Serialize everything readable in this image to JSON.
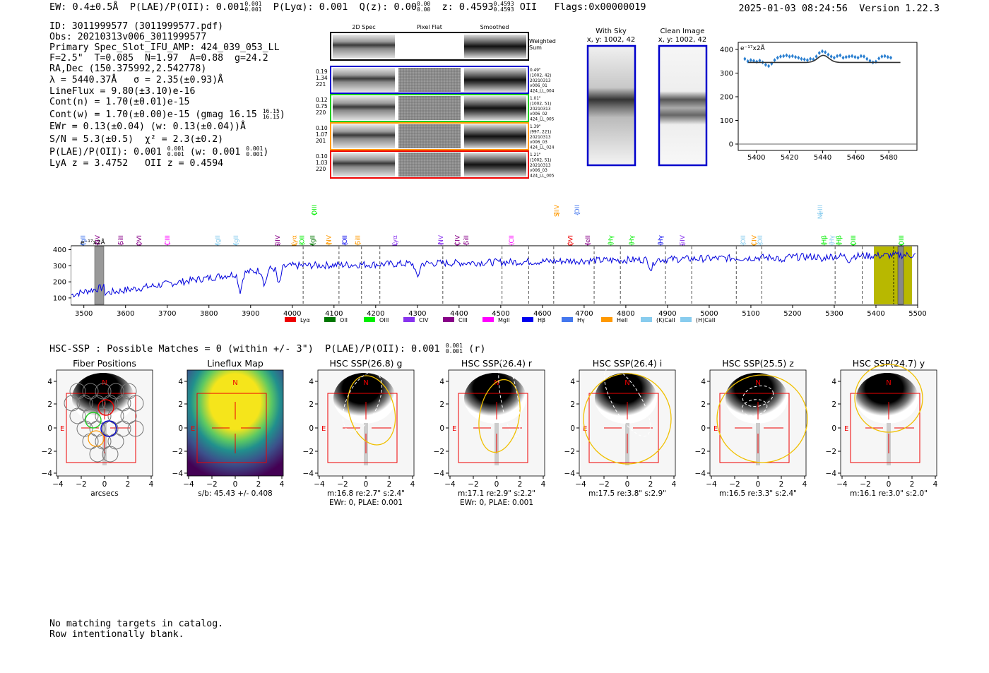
{
  "header": {
    "ew": "EW: 0.4±0.5Å",
    "plae_label": "P(LAE)/P(OII): 0.001",
    "plae_hi": "0.001",
    "plae_lo": "0.001",
    "plya": "P(Lyα): 0.001",
    "qz_label": "Q(z): 0.00",
    "qz_hi": "0.00",
    "qz_lo": "0.00",
    "z_label": "z: 0.4593",
    "z_hi": "0.4593",
    "z_lo": "0.4593",
    "z_line": "OII",
    "flags": "Flags:0x00000019",
    "datetime": "2025-01-03 08:24:56",
    "version": "Version 1.22.3"
  },
  "info": {
    "id": "ID: 3011999577 (3011999577.pdf)",
    "obs": "Obs: 20210313v006_3011999577",
    "primary": "Primary Spec_Slot_IFU_AMP: 424_039_053_LL",
    "fiber": "F=2.5\"  T=0.085  N=1.97  A=0.88  g=24.2",
    "radec": "RA,Dec (150.375992,2.542778)",
    "lambda": "λ = 5440.37Å   σ = 2.35(±0.93)Å",
    "lineflux": "LineFlux = 9.80(±3.10)e-16",
    "contn": "Cont(n) = 1.70(±0.01)e-15",
    "contw": "Cont(w) = 1.70(±0.00)e-15 (gmag 16.15",
    "contw_hi": "16.15",
    "contw_lo": "16.15",
    "contw_end": ")",
    "ewr": "EWr = 0.13(±0.04) (w: 0.13(±0.04))Å",
    "sn": "S/N = 5.3(±0.5)  χ² = 2.3(±0.2)",
    "plae": "P(LAE)/P(OII): 0.001",
    "plae_hi": "0.001",
    "plae_lo": "0.001",
    "plae_w": "(w: 0.001",
    "plae_w_hi": "0.001",
    "plae_w_lo": "0.001",
    "plae_end": ")",
    "lya": "LyA z = 3.4752   OII z = 0.4594"
  },
  "cutouts": {
    "headers": [
      "2D Spec",
      "Pixel Flat",
      "Smoothed"
    ],
    "weighted_sum": [
      "Weighted",
      "Sum"
    ],
    "rows": [
      {
        "stats": [
          "0.19",
          "1.34",
          "221"
        ],
        "meta": [
          "0.49\"",
          "(1002, 42)",
          "20210313",
          "v006_01",
          "424_LL_004"
        ],
        "color": "#0000cc"
      },
      {
        "stats": [
          "0.12",
          "0.75",
          "220"
        ],
        "meta": [
          "1.01\"",
          "(1002, 51)",
          "20210313",
          "v006_02",
          "424_LL_005"
        ],
        "color": "#22cc22"
      },
      {
        "stats": [
          "0.10",
          "1.07",
          "201"
        ],
        "meta": [
          "1.39\"",
          "(997, 221)",
          "20210313",
          "v006_03",
          "424_LL_024"
        ],
        "color": "#ff9900"
      },
      {
        "stats": [
          "0.10",
          "1.03",
          "220"
        ],
        "meta": [
          "1.21\"",
          "(1002, 51)",
          "20210313",
          "v006_03",
          "424_LL_005"
        ],
        "color": "#ee0000"
      }
    ]
  },
  "sky": {
    "with_sky_title": "With Sky",
    "with_sky_coords": "x, y: 1002, 42",
    "clean_title": "Clean Image",
    "clean_coords": "x, y: 1002, 42"
  },
  "zoom_spectrum": {
    "unit": "e⁻¹⁷x2Å",
    "yticks": [
      "400",
      "300",
      "200",
      "100",
      "0"
    ],
    "xticks": [
      "5400",
      "5420",
      "5440",
      "5460",
      "5480"
    ]
  },
  "full_spectrum": {
    "unit": "e⁻¹⁷x2Å",
    "yticks": [
      "400",
      "300",
      "200",
      "100"
    ],
    "xticks": [
      "3500",
      "3600",
      "3700",
      "3800",
      "3900",
      "4000",
      "4100",
      "4200",
      "4300",
      "4400",
      "4500",
      "4600",
      "4700",
      "4800",
      "4900",
      "5000",
      "5100",
      "5200",
      "5300",
      "5400",
      "5500"
    ],
    "legend": [
      {
        "label": "Lyα",
        "color": "#ee0000"
      },
      {
        "label": "OII",
        "color": "#007700"
      },
      {
        "label": "OIII",
        "color": "#00ee00"
      },
      {
        "label": "CIV",
        "color": "#8833ee"
      },
      {
        "label": "CIII",
        "color": "#880088"
      },
      {
        "label": "MgII",
        "color": "#ff00ff"
      },
      {
        "label": "Hβ",
        "color": "#0000ee"
      },
      {
        "label": "Hγ",
        "color": "#4477ee"
      },
      {
        "label": "HeII",
        "color": "#ff9900"
      },
      {
        "label": "(K)CaII",
        "color": "#88ccee"
      },
      {
        "label": "(H)CaII",
        "color": "#88ccee"
      }
    ],
    "lines": [
      {
        "label": "MgII",
        "color": "#4477ee",
        "row": 0
      },
      {
        "label": "NV",
        "color": "#880088",
        "row": 0
      },
      {
        "label": "SiII",
        "color": "#880088",
        "row": 0
      },
      {
        "label": "OVI",
        "color": "#880088",
        "row": 0
      },
      {
        "label": "CIII",
        "color": "#ff00ff",
        "row": 0
      },
      {
        "label": "MgII",
        "color": "#88ccee",
        "row": 0
      },
      {
        "label": "MgII",
        "color": "#88ccee",
        "row": 0
      },
      {
        "label": "SiIV",
        "color": "#880088",
        "row": 0
      },
      {
        "label": "Lyα",
        "color": "#ff9900",
        "row": 0
      },
      {
        "label": "OII",
        "color": "#00ee00",
        "row": 0
      },
      {
        "label": "MgII",
        "color": "#007700",
        "row": 0
      },
      {
        "label": "OIII",
        "color": "#00ee00",
        "row": 1
      },
      {
        "label": "NV",
        "color": "#ff9900",
        "row": 0
      },
      {
        "label": "OII",
        "color": "#0000ee",
        "row": 0
      },
      {
        "label": "SiII",
        "color": "#ff9900",
        "row": 0
      },
      {
        "label": "Lyα",
        "color": "#8833ee",
        "row": 0
      },
      {
        "label": "NV",
        "color": "#8833ee",
        "row": 0
      },
      {
        "label": "CIV",
        "color": "#880088",
        "row": 0
      },
      {
        "label": "SiII",
        "color": "#880088",
        "row": 0
      },
      {
        "label": "CII",
        "color": "#ff00ff",
        "row": 0
      },
      {
        "label": "SiIV",
        "color": "#ff9900",
        "row": 1
      },
      {
        "label": "OVI",
        "color": "#ee0000",
        "row": 0
      },
      {
        "label": "OII",
        "color": "#4477ee",
        "row": 1
      },
      {
        "label": "HeII",
        "color": "#880088",
        "row": 0
      },
      {
        "label": "Hγ",
        "color": "#00ee00",
        "row": 0
      },
      {
        "label": "Hγ",
        "color": "#00ee00",
        "row": 0
      },
      {
        "label": "Hγ",
        "color": "#0000ee",
        "row": 0
      },
      {
        "label": "SiIV",
        "color": "#8833ee",
        "row": 0
      },
      {
        "label": "OII",
        "color": "#88ccee",
        "row": 0
      },
      {
        "label": "CIV",
        "color": "#ff9900",
        "row": 0
      },
      {
        "label": "OII",
        "color": "#88ccee",
        "row": 0
      },
      {
        "label": "NeIII",
        "color": "#88ccee",
        "row": 1
      },
      {
        "label": "Hβ",
        "color": "#00ee00",
        "row": 0
      },
      {
        "label": "Hγ",
        "color": "#88ccee",
        "row": 0
      },
      {
        "label": "Hβ",
        "color": "#00ee00",
        "row": 0
      },
      {
        "label": "OIII",
        "color": "#00ee00",
        "row": 0
      },
      {
        "label": "OIII",
        "color": "#00ee00",
        "row": 0
      }
    ]
  },
  "hsc": {
    "summary": "HSC-SSP : Possible Matches = 0 (within +/- 3\")  P(LAE)/P(OII): 0.001",
    "summary_hi": "0.001",
    "summary_lo": "0.001",
    "summary_band": "(r)",
    "axis_ticks": [
      "4",
      "2",
      "0",
      "−2",
      "−4"
    ],
    "xaxis_ticks": [
      "−4",
      "−2",
      "0",
      "2",
      "4"
    ],
    "compass_n": "N",
    "compass_e": "E",
    "panels": [
      {
        "title": "Fiber Positions",
        "caption": "arcsecs",
        "caption2": ""
      },
      {
        "title": "Lineflux Map",
        "caption": "s/b: 45.43 +/- 0.408",
        "caption2": ""
      },
      {
        "title": "HSC SSP(26.8) g",
        "caption": "m:16.8  re:2.7\"  s:2.4\"",
        "caption2": "EWr: 0, PLAE: 0.001"
      },
      {
        "title": "HSC SSP(26.4) r",
        "caption": "m:17.1  re:2.9\"  s:2.2\"",
        "caption2": "EWr: 0, PLAE: 0.001"
      },
      {
        "title": "HSC SSP(26.4) i",
        "caption": "m:17.5  re:3.8\"  s:2.9\"",
        "caption2": ""
      },
      {
        "title": "HSC SSP(25.5) z",
        "caption": "m:16.5  re:3.3\"  s:2.4\"",
        "caption2": ""
      },
      {
        "title": "HSC SSP(24.7) y",
        "caption": "m:16.1  re:3.0\"  s:2.0\"",
        "caption2": ""
      }
    ]
  },
  "footer": {
    "line1": "No matching targets in catalog.",
    "line2": "Row intentionally blank."
  }
}
